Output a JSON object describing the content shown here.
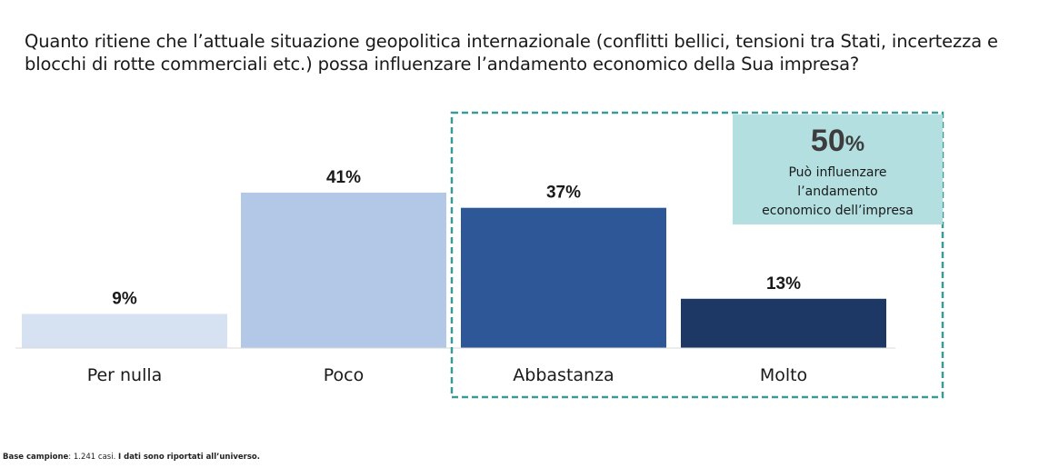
{
  "question": "Quanto ritiene che l’attuale situazione geopolitica internazionale (conflitti bellici, tensioni tra Stati, incertezza e blocchi di rotte commerciali etc.) possa influenzare l’andamento economico della Sua impresa?",
  "callout": {
    "value": "50",
    "unit": "%",
    "text_lines": [
      "Può influenzare",
      "l’andamento",
      "economico dell’impresa"
    ]
  },
  "footnote": {
    "base_label": "Base campione",
    "base_value": ": 1.241 casi. ",
    "note": "I dati sono riportati all’universo."
  },
  "chart_data": {
    "type": "bar",
    "categories": [
      "Per nulla",
      "Poco",
      "Abbastanza",
      "Molto"
    ],
    "values": [
      9,
      41,
      37,
      13
    ],
    "value_labels": [
      "9%",
      "41%",
      "37%",
      "13%"
    ],
    "colors": [
      "#d6e2f1",
      "#b3c8e6",
      "#2e5797",
      "#1d3865"
    ],
    "ylim": [
      0,
      41
    ],
    "grid": false,
    "highlight": {
      "categories": [
        "Abbastanza",
        "Molto"
      ],
      "border_color": "#3a9a98",
      "style": "dashed"
    }
  }
}
